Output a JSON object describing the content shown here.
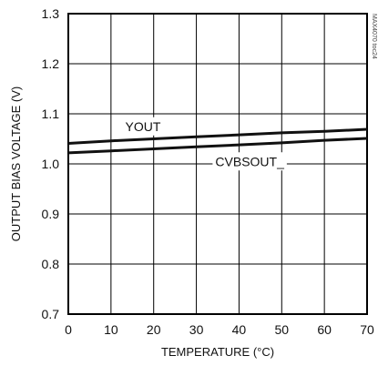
{
  "chart_data": {
    "type": "line",
    "title": "",
    "xlabel": "TEMPERATURE (°C)",
    "ylabel": "OUTPUT BIAS VOLTAGE (V)",
    "xlim": [
      0,
      70
    ],
    "ylim": [
      0.7,
      1.3
    ],
    "x_ticks": [
      0,
      10,
      20,
      30,
      40,
      50,
      60,
      70
    ],
    "x_tick_labels": [
      "0",
      "10",
      "20",
      "30",
      "40",
      "50",
      "60",
      "70"
    ],
    "y_ticks": [
      0.7,
      0.8,
      0.9,
      1.0,
      1.1,
      1.2,
      1.3
    ],
    "y_tick_labels": [
      "0.7",
      "0.8",
      "0.9",
      "1.0",
      "1.1",
      "1.2",
      "1.3"
    ],
    "grid": true,
    "series": [
      {
        "name": "YOUT",
        "x": [
          0,
          10,
          20,
          30,
          40,
          50,
          60,
          70
        ],
        "y": [
          1.041,
          1.046,
          1.05,
          1.054,
          1.058,
          1.062,
          1.065,
          1.069
        ]
      },
      {
        "name": "CVBSOUT_",
        "x": [
          0,
          10,
          20,
          30,
          40,
          50,
          60,
          70
        ],
        "y": [
          1.022,
          1.026,
          1.03,
          1.034,
          1.038,
          1.042,
          1.047,
          1.051
        ]
      }
    ],
    "series_color": "#111111",
    "watermark": "MAX4070 toc24"
  }
}
